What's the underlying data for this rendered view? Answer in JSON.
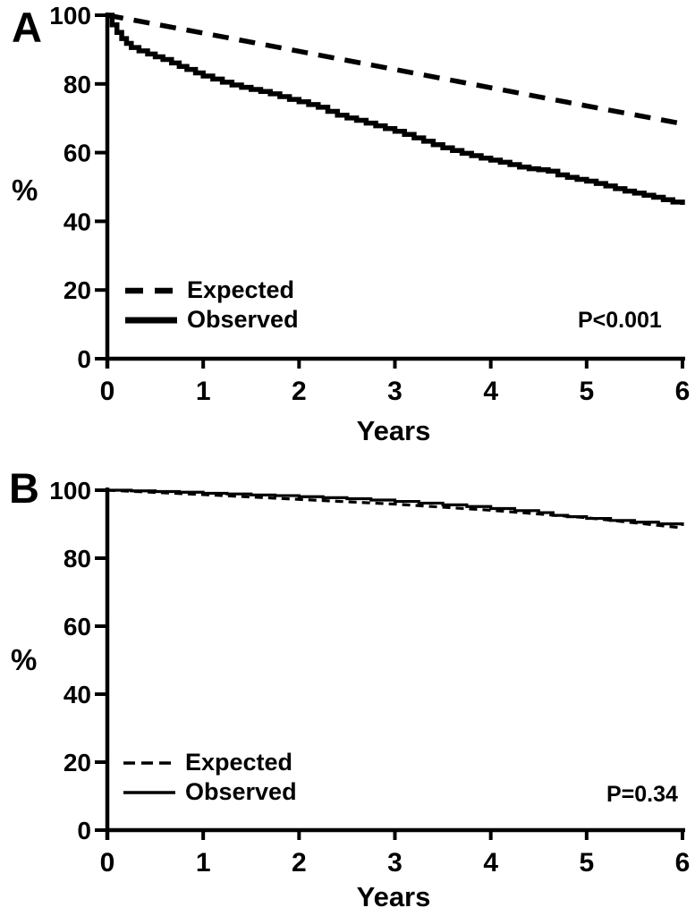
{
  "page": {
    "background": "#ffffff",
    "ink": "#000000"
  },
  "chart_data": [
    {
      "type": "line",
      "panel_label": "A",
      "ylabel": "%",
      "xlabel": "Years",
      "annotation": "P<0.001",
      "xlim": [
        0,
        6
      ],
      "ylim": [
        0,
        100
      ],
      "x_ticks": [
        0,
        1,
        2,
        3,
        4,
        5,
        6
      ],
      "y_ticks": [
        0,
        20,
        40,
        60,
        80,
        100
      ],
      "grid": false,
      "legend_position": "inside-lower-left",
      "series": [
        {
          "name": "Expected",
          "style": "dashed",
          "points": [
            [
              0,
              100
            ],
            [
              1,
              94.8
            ],
            [
              2,
              89.5
            ],
            [
              3,
              84.2
            ],
            [
              4,
              78.9
            ],
            [
              5,
              73.6
            ],
            [
              6,
              68.4
            ]
          ]
        },
        {
          "name": "Observed",
          "style": "solid",
          "points": [
            [
              0,
              100
            ],
            [
              0.05,
              97.2
            ],
            [
              0.1,
              95.0
            ],
            [
              0.15,
              93.2
            ],
            [
              0.2,
              91.8
            ],
            [
              0.25,
              90.6
            ],
            [
              0.33,
              89.6
            ],
            [
              0.42,
              88.7
            ],
            [
              0.5,
              87.9
            ],
            [
              0.58,
              87.1
            ],
            [
              0.67,
              86.1
            ],
            [
              0.75,
              85.1
            ],
            [
              0.83,
              84.2
            ],
            [
              0.92,
              83.2
            ],
            [
              1.0,
              82.3
            ],
            [
              1.1,
              81.4
            ],
            [
              1.2,
              80.5
            ],
            [
              1.3,
              79.7
            ],
            [
              1.4,
              79.0
            ],
            [
              1.5,
              78.4
            ],
            [
              1.6,
              77.8
            ],
            [
              1.7,
              77.1
            ],
            [
              1.8,
              76.3
            ],
            [
              1.9,
              75.5
            ],
            [
              2.0,
              74.8
            ],
            [
              2.1,
              74.0
            ],
            [
              2.2,
              73.2
            ],
            [
              2.3,
              72.0
            ],
            [
              2.4,
              70.9
            ],
            [
              2.5,
              70.1
            ],
            [
              2.6,
              69.4
            ],
            [
              2.7,
              68.6
            ],
            [
              2.8,
              67.8
            ],
            [
              2.9,
              67.0
            ],
            [
              3.0,
              66.2
            ],
            [
              3.1,
              65.3
            ],
            [
              3.2,
              64.3
            ],
            [
              3.3,
              63.3
            ],
            [
              3.4,
              62.3
            ],
            [
              3.5,
              61.4
            ],
            [
              3.6,
              60.6
            ],
            [
              3.7,
              59.8
            ],
            [
              3.8,
              59.1
            ],
            [
              3.9,
              58.4
            ],
            [
              4.0,
              57.8
            ],
            [
              4.1,
              57.2
            ],
            [
              4.2,
              56.5
            ],
            [
              4.3,
              55.8
            ],
            [
              4.4,
              55.3
            ],
            [
              4.5,
              55.0
            ],
            [
              4.6,
              54.6
            ],
            [
              4.7,
              53.5
            ],
            [
              4.8,
              52.8
            ],
            [
              4.9,
              52.2
            ],
            [
              5.0,
              51.7
            ],
            [
              5.1,
              51.0
            ],
            [
              5.2,
              50.3
            ],
            [
              5.3,
              49.5
            ],
            [
              5.4,
              48.8
            ],
            [
              5.5,
              48.2
            ],
            [
              5.6,
              47.6
            ],
            [
              5.7,
              47.0
            ],
            [
              5.8,
              46.3
            ],
            [
              5.9,
              45.6
            ],
            [
              6.0,
              44.8
            ]
          ]
        }
      ]
    },
    {
      "type": "line",
      "panel_label": "B",
      "ylabel": "%",
      "xlabel": "Years",
      "annotation": "P=0.34",
      "xlim": [
        0,
        6
      ],
      "ylim": [
        0,
        100
      ],
      "x_ticks": [
        0,
        1,
        2,
        3,
        4,
        5,
        6
      ],
      "y_ticks": [
        0,
        20,
        40,
        60,
        80,
        100
      ],
      "grid": false,
      "legend_position": "inside-lower-left",
      "series": [
        {
          "name": "Expected",
          "style": "dashed",
          "points": [
            [
              0,
              100
            ],
            [
              1,
              98.7
            ],
            [
              2,
              97.3
            ],
            [
              3,
              95.9
            ],
            [
              4,
              94.1
            ],
            [
              5,
              91.9
            ],
            [
              6,
              88.9
            ]
          ]
        },
        {
          "name": "Observed",
          "style": "solid",
          "points": [
            [
              0,
              100
            ],
            [
              0.25,
              99.8
            ],
            [
              0.5,
              99.6
            ],
            [
              0.75,
              99.4
            ],
            [
              1.0,
              99.1
            ],
            [
              1.25,
              98.9
            ],
            [
              1.5,
              98.6
            ],
            [
              1.75,
              98.4
            ],
            [
              2.0,
              98.1
            ],
            [
              2.25,
              97.8
            ],
            [
              2.5,
              97.5
            ],
            [
              2.75,
              97.1
            ],
            [
              3.0,
              96.7
            ],
            [
              3.25,
              96.2
            ],
            [
              3.5,
              95.7
            ],
            [
              3.75,
              95.2
            ],
            [
              4.0,
              94.6
            ],
            [
              4.25,
              94.0
            ],
            [
              4.5,
              93.4
            ],
            [
              4.65,
              92.6
            ],
            [
              4.8,
              92.2
            ],
            [
              5.0,
              91.7
            ],
            [
              5.25,
              91.1
            ],
            [
              5.5,
              90.6
            ],
            [
              5.75,
              90.1
            ],
            [
              6.0,
              89.5
            ]
          ]
        }
      ]
    }
  ]
}
